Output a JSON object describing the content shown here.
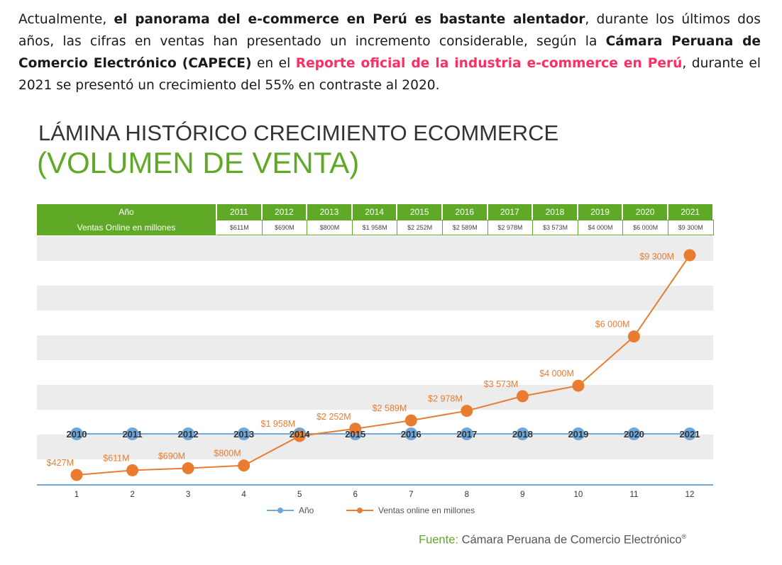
{
  "intro": {
    "p1": "Actualmente, ",
    "b1": "el panorama del e-commerce en Perú es bastante alentador",
    "p2": ", durante los últimos dos años, las cifras en ventas han presentado un incremento considerable, según la ",
    "b2": "Cámara Peruana de Comercio Electrónico (CAPECE)",
    "p3": " en el ",
    "link": "Reporte oficial de la industria e-commerce en Perú",
    "p4": ", durante el 2021 se presentó un crecimiento del 55% en contraste al 2020."
  },
  "colors": {
    "green": "#5fa926",
    "orange": "#e87d31",
    "blue": "#6fa9dc",
    "link": "#ff2e63"
  },
  "chart_data": {
    "type": "line",
    "title": "LÁMINA HISTÓRICO CRECIMIENTO ECOMMERCE",
    "subtitle": "(VOLUMEN DE VENTA)",
    "table": {
      "row_year_header": "Año",
      "row_sales_header": "Ventas Online en millones",
      "years": [
        "2011",
        "2012",
        "2013",
        "2014",
        "2015",
        "2016",
        "2017",
        "2018",
        "2019",
        "2020",
        "2021"
      ],
      "sales": [
        "$611M",
        "$690M",
        "$800M",
        "$1 958M",
        "$2 252M",
        "$2 589M",
        "$2 978M",
        "$3 573M",
        "$4 000M",
        "$6 000M",
        "$9 300M"
      ]
    },
    "x": [
      1,
      2,
      3,
      4,
      5,
      6,
      7,
      8,
      9,
      10,
      11,
      12
    ],
    "series": [
      {
        "name": "Año",
        "color": "#6fa9dc",
        "labels": [
          "2010",
          "2011",
          "2012",
          "2013",
          "2014",
          "2015",
          "2016",
          "2017",
          "2018",
          "2019",
          "2020",
          "2021"
        ]
      },
      {
        "name": "Ventas online en millones",
        "color": "#e87d31",
        "values": [
          427,
          611,
          690,
          800,
          1958,
          2252,
          2589,
          2978,
          3573,
          4000,
          6000,
          9300
        ],
        "labels": [
          "$427M",
          "$611M",
          "$690M",
          "$800M",
          "$1 958M",
          "$2 252M",
          "$2 589M",
          "$2 978M",
          "$3 573M",
          "$4 000M",
          "$6 000M",
          "$9 300M"
        ]
      }
    ],
    "grid": true,
    "legend": "bottom-center"
  },
  "source": {
    "label": "Fuente:",
    "text": "Cámara Peruana de Comercio Electrónico",
    "mark": "®"
  }
}
